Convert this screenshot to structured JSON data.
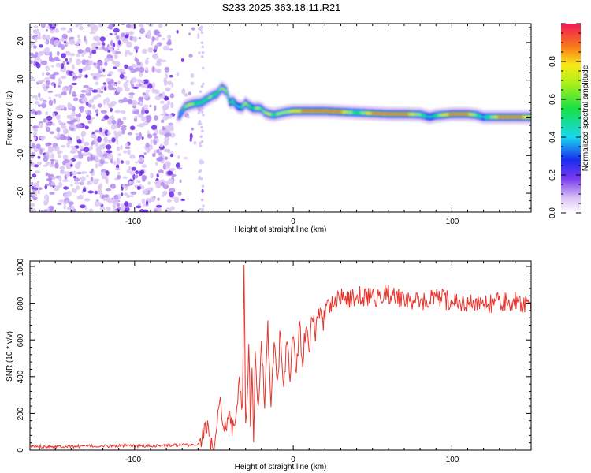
{
  "title": "S233.2025.363.18.11.R21",
  "colors": {
    "axis": "#000000",
    "snr_line": "#e8342c",
    "dot_light": "#dcc8f5",
    "dot_mid": "#b48cf0",
    "dot_dark": "#6e28e6"
  },
  "colorbar": {
    "label": "Normalized spectral amplitude",
    "ticks": [
      "0.0",
      "0.2",
      "0.4",
      "0.6",
      "0.8"
    ],
    "range": [
      0,
      1
    ]
  },
  "chart_data": [
    {
      "type": "heatmap",
      "title": "S233.2025.363.18.11.R21",
      "xlabel": "Height of straight line (km)",
      "ylabel": "Frequency (Hz)",
      "xlim": [
        -166,
        150
      ],
      "ylim": [
        -25,
        25
      ],
      "xticks": [
        "-100",
        "0",
        "100"
      ],
      "yticks": [
        "-20",
        "-10",
        "0",
        "10",
        "20"
      ],
      "noise_region_x": [
        -166,
        -56
      ],
      "ridge": {
        "x": [
          -72,
          -68,
          -65,
          -62,
          -58,
          -55,
          -52,
          -48,
          -45,
          -42,
          -40,
          -38,
          -35,
          -32,
          -30,
          -28,
          -25,
          -22,
          -20,
          -18,
          -15,
          -12,
          -10,
          -5,
          0,
          10,
          20,
          30,
          40,
          50,
          60,
          70,
          80,
          86,
          90,
          95,
          100,
          110,
          115,
          120,
          130,
          140,
          150
        ],
        "freq": [
          0.5,
          3.0,
          3.5,
          3.8,
          4.0,
          4.8,
          5.6,
          6.4,
          8.0,
          7.0,
          4.0,
          4.5,
          3.0,
          2.8,
          4.0,
          3.2,
          2.5,
          2.6,
          2.4,
          1.5,
          1.0,
          0.8,
          1.0,
          1.5,
          1.8,
          1.8,
          1.8,
          1.6,
          1.4,
          1.2,
          1.0,
          1.0,
          0.9,
          0.2,
          0.6,
          0.8,
          1.0,
          1.0,
          0.8,
          0.2,
          0.2,
          0.2,
          0.2
        ],
        "amplitude": [
          0.35,
          0.7,
          0.8,
          0.65,
          0.6,
          0.65,
          0.7,
          0.6,
          0.75,
          0.7,
          0.55,
          0.6,
          0.5,
          0.6,
          0.85,
          0.6,
          0.55,
          0.8,
          0.6,
          0.75,
          0.8,
          0.6,
          0.7,
          0.75,
          0.8,
          0.95,
          0.95,
          0.9,
          0.6,
          0.9,
          0.95,
          0.95,
          0.7,
          0.5,
          0.6,
          0.85,
          0.9,
          0.9,
          0.7,
          0.5,
          0.9,
          0.95,
          0.8
        ]
      }
    },
    {
      "type": "line",
      "xlabel": "Height of straight line (km)",
      "ylabel": "SNR (10 * v/v)",
      "xlim": [
        -166,
        150
      ],
      "ylim": [
        0,
        1030
      ],
      "xticks": [
        "-100",
        "0",
        "100"
      ],
      "yticks": [
        "0",
        "200",
        "400",
        "600",
        "800",
        "1000"
      ],
      "series": [
        {
          "name": "SNR",
          "x": [
            -166,
            -120,
            -80,
            -60,
            -56,
            -54,
            -52,
            -50,
            -46,
            -44,
            -42,
            -40,
            -38,
            -36,
            -34,
            -32,
            -31,
            -30,
            -29,
            -28,
            -27,
            -26,
            -25,
            -24,
            -22,
            -20,
            -18,
            -16,
            -14,
            -12,
            -10,
            -8,
            -6,
            -4,
            -2,
            0,
            2,
            4,
            6,
            8,
            10,
            12,
            14,
            16,
            18,
            20,
            24,
            28,
            30,
            35,
            40,
            50,
            60,
            70,
            80,
            90,
            100,
            110,
            120,
            130,
            140,
            150
          ],
          "y": [
            20,
            22,
            25,
            30,
            100,
            160,
            50,
            30,
            250,
            150,
            120,
            200,
            130,
            170,
            420,
            200,
            1030,
            150,
            300,
            620,
            100,
            480,
            80,
            520,
            250,
            600,
            230,
            640,
            280,
            600,
            300,
            650,
            330,
            640,
            360,
            660,
            420,
            690,
            480,
            700,
            560,
            720,
            640,
            760,
            700,
            760,
            800,
            820,
            840,
            810,
            840,
            830,
            850,
            820,
            800,
            830,
            810,
            800,
            790,
            805,
            810,
            790
          ],
          "noise": 60
        }
      ]
    }
  ]
}
